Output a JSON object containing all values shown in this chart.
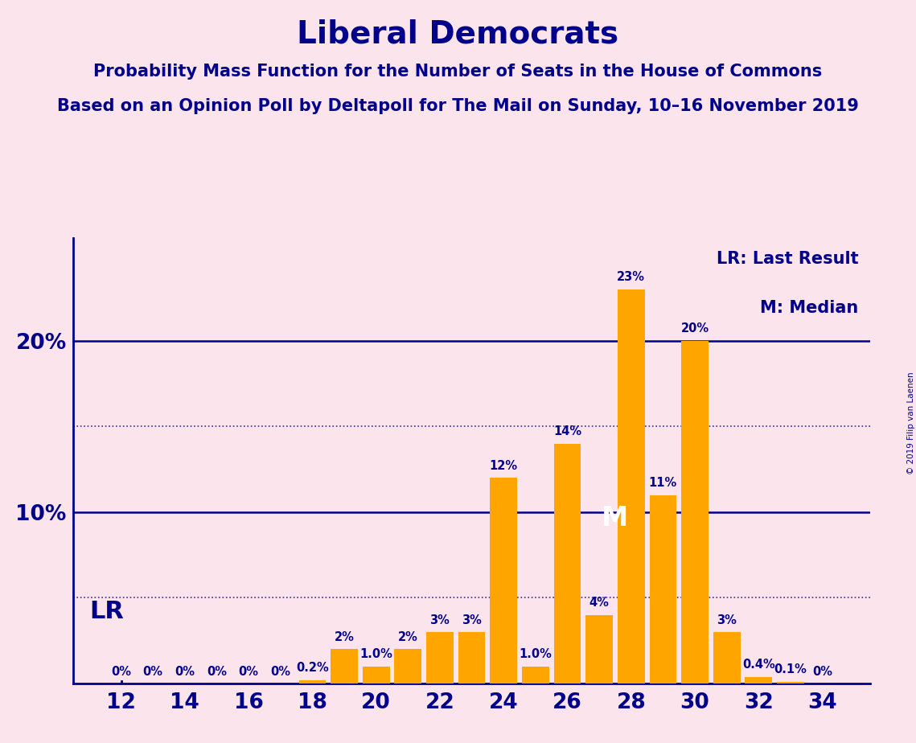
{
  "title": "Liberal Democrats",
  "subtitle1": "Probability Mass Function for the Number of Seats in the House of Commons",
  "subtitle2": "Based on an Opinion Poll by Deltapoll for The Mail on Sunday, 10–16 November 2019",
  "copyright": "© 2019 Filip van Laenen",
  "background_color": "#fce4ec",
  "bar_color": "#FFA500",
  "text_color": "#00008B",
  "axis_color": "#00008B",
  "seats": [
    12,
    13,
    14,
    15,
    16,
    17,
    18,
    19,
    20,
    21,
    22,
    23,
    24,
    25,
    26,
    27,
    28,
    29,
    30,
    31,
    32,
    33,
    34
  ],
  "probabilities": [
    0.0,
    0.0,
    0.0,
    0.0,
    0.0,
    0.0,
    0.2,
    2.0,
    1.0,
    2.0,
    3.0,
    3.0,
    12.0,
    1.0,
    14.0,
    4.0,
    23.0,
    11.0,
    20.0,
    3.0,
    0.4,
    0.1,
    0.0
  ],
  "bar_labels": [
    "0%",
    "0%",
    "0%",
    "0%",
    "0%",
    "0%",
    "0.2%",
    "2%",
    "1.0%",
    "2%",
    "3%",
    "3%",
    "12%",
    "1.0%",
    "14%",
    "4%",
    "23%",
    "11%",
    "20%",
    "3%",
    "0.4%",
    "0.1%",
    "0%"
  ],
  "xtick_seats": [
    12,
    14,
    16,
    18,
    20,
    22,
    24,
    26,
    28,
    30,
    32,
    34
  ],
  "ylim_max": 26,
  "solid_hlines": [
    10.0,
    20.0
  ],
  "dotted_hlines": [
    5.0,
    15.0
  ],
  "LR_seat": 12,
  "LR_label": "LR",
  "median_seat": 28,
  "median_label": "M",
  "legend_text1": "LR: Last Result",
  "legend_text2": "M: Median"
}
